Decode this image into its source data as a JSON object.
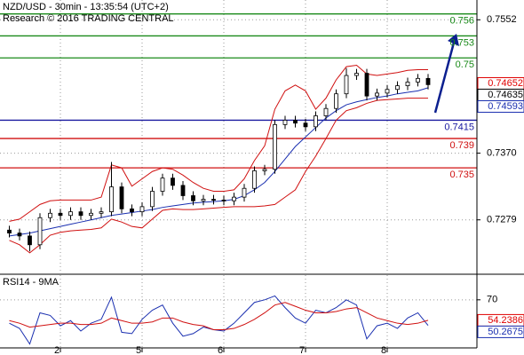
{
  "chart_data": [
    {
      "type": "candlestick",
      "title": "NZD/USD - 30min - 13:35:54 (UTC+2)",
      "subtitle": "Research © 2016 TRADING CENTRAL",
      "categories": [
        null,
        null,
        null,
        null,
        null,
        "2",
        null,
        null,
        null,
        null,
        null,
        null,
        null,
        "5",
        null,
        null,
        null,
        null,
        null,
        null,
        null,
        "6",
        null,
        null,
        null,
        null,
        null,
        null,
        null,
        "7",
        null,
        null,
        null,
        null,
        null,
        null,
        null,
        "8",
        null,
        null,
        null,
        null
      ],
      "open": [
        0.7265,
        0.7261,
        0.7257,
        0.7245,
        0.7282,
        0.7288,
        0.7285,
        0.729,
        0.7285,
        0.7288,
        0.729,
        0.7324,
        0.7294,
        0.729,
        0.7297,
        0.7318,
        0.7336,
        0.7326,
        0.7312,
        0.7305,
        0.7307,
        0.7306,
        0.7305,
        0.731,
        0.7322,
        0.7346,
        0.7348,
        0.7409,
        0.7415,
        0.7411,
        0.7406,
        0.7421,
        0.7431,
        0.7451,
        0.7476,
        0.7479,
        0.7448,
        0.7452,
        0.7457,
        0.7462,
        0.7467,
        0.7472
      ],
      "high": [
        0.7271,
        0.7267,
        0.7263,
        0.7288,
        0.7294,
        0.7294,
        0.7296,
        0.7296,
        0.7294,
        0.7296,
        0.7358,
        0.733,
        0.73,
        0.7303,
        0.7324,
        0.7342,
        0.7342,
        0.7332,
        0.7318,
        0.7313,
        0.7313,
        0.7312,
        0.7316,
        0.7328,
        0.7352,
        0.7354,
        0.7415,
        0.7421,
        0.7421,
        0.7417,
        0.7427,
        0.7437,
        0.7457,
        0.7486,
        0.7485,
        0.7485,
        0.7458,
        0.7463,
        0.7468,
        0.7473,
        0.7478,
        0.7478
      ],
      "low": [
        0.7255,
        0.7251,
        0.7236,
        0.7239,
        0.7276,
        0.7279,
        0.7279,
        0.7279,
        0.7279,
        0.7282,
        0.7284,
        0.7288,
        0.7284,
        0.7284,
        0.7291,
        0.7312,
        0.732,
        0.7306,
        0.7299,
        0.7299,
        0.73,
        0.7299,
        0.7299,
        0.7304,
        0.7316,
        0.734,
        0.7342,
        0.7403,
        0.7405,
        0.74,
        0.74,
        0.7415,
        0.7425,
        0.7445,
        0.747,
        0.7442,
        0.7442,
        0.7446,
        0.7451,
        0.7456,
        0.7461,
        0.7457
      ],
      "close": [
        0.7261,
        0.7257,
        0.7245,
        0.7282,
        0.7288,
        0.7285,
        0.729,
        0.7285,
        0.7288,
        0.729,
        0.7324,
        0.7294,
        0.729,
        0.7297,
        0.7318,
        0.7336,
        0.7326,
        0.7312,
        0.7305,
        0.7307,
        0.7306,
        0.7305,
        0.731,
        0.7322,
        0.7346,
        0.7348,
        0.7409,
        0.7415,
        0.7411,
        0.7406,
        0.7421,
        0.7431,
        0.7451,
        0.7476,
        0.7479,
        0.7448,
        0.7452,
        0.7457,
        0.7462,
        0.7467,
        0.7472,
        0.74635
      ],
      "series": [
        {
          "color": "#1a2fb0",
          "values": [
            0.7257,
            0.7259,
            0.7261,
            0.7264,
            0.7267,
            0.727,
            0.7273,
            0.7276,
            0.7279,
            0.7282,
            0.7285,
            0.7287,
            0.7289,
            0.7291,
            0.7293,
            0.7296,
            0.7298,
            0.73,
            0.7302,
            0.7303,
            0.7304,
            0.7305,
            0.7307,
            0.7312,
            0.732,
            0.733,
            0.7345,
            0.7362,
            0.7379,
            0.7392,
            0.7405,
            0.7418,
            0.7428,
            0.7436,
            0.744,
            0.7443,
            0.7446,
            0.7448,
            0.7451,
            0.7453,
            0.7455,
            0.74593
          ]
        },
        {
          "color": "#d01010",
          "values": [
            0.7277,
            0.728,
            0.729,
            0.73,
            0.7305,
            0.7306,
            0.7306,
            0.7306,
            0.7306,
            0.731,
            0.7354,
            0.735,
            0.7325,
            0.7335,
            0.7345,
            0.735,
            0.7348,
            0.734,
            0.733,
            0.7322,
            0.7318,
            0.7318,
            0.732,
            0.7335,
            0.736,
            0.738,
            0.743,
            0.7455,
            0.7463,
            0.7455,
            0.743,
            0.7445,
            0.747,
            0.7488,
            0.749,
            0.7478,
            0.7476,
            0.7478,
            0.748,
            0.7483,
            0.7484,
            0.7484
          ]
        },
        {
          "color": "#d01010",
          "values": [
            0.7251,
            0.7245,
            0.7234,
            0.7245,
            0.7258,
            0.7262,
            0.7264,
            0.7265,
            0.7266,
            0.7268,
            0.728,
            0.7276,
            0.727,
            0.7268,
            0.728,
            0.7292,
            0.7294,
            0.7293,
            0.7293,
            0.7294,
            0.7295,
            0.7296,
            0.7297,
            0.7297,
            0.7297,
            0.7298,
            0.73,
            0.731,
            0.732,
            0.7345,
            0.7366,
            0.739,
            0.7415,
            0.7428,
            0.7432,
            0.7438,
            0.7442,
            0.7443,
            0.7444,
            0.7445,
            0.7445,
            0.7445
          ]
        }
      ],
      "levels": [
        {
          "value": 0.756,
          "color": "#1a8a1a"
        },
        {
          "value": 0.753,
          "color": "#1a8a1a"
        },
        {
          "value": 0.75,
          "color": "#1a8a1a"
        },
        {
          "value": 0.7415,
          "color": "#1a1aa0"
        },
        {
          "value": 0.739,
          "color": "#d01010"
        },
        {
          "value": 0.735,
          "color": "#d01010"
        }
      ],
      "value_tags": [
        {
          "value": 0.74652,
          "color": "#e00000"
        },
        {
          "value": 0.74635,
          "color": "#000000"
        },
        {
          "value": 0.74593,
          "color": "#1a2fb0"
        }
      ],
      "ylim": [
        0.7206,
        0.7579
      ],
      "yticks": [
        0.7552,
        {
          "value": 0.737,
          "label": "0.7370"
        },
        0.7279
      ],
      "grid": true
    },
    {
      "type": "line",
      "title": "RSI14 - 9MA",
      "series": [
        {
          "color": "#1a2fb0",
          "values": [
            52,
            48,
            36,
            60,
            58,
            50,
            54,
            46,
            52,
            55,
            72,
            45,
            44,
            55,
            62,
            66,
            52,
            42,
            44,
            49,
            47,
            46,
            52,
            60,
            68,
            70,
            73,
            64,
            56,
            52,
            62,
            60,
            64,
            70,
            66,
            40,
            50,
            52,
            48,
            56,
            60,
            50.2675
          ]
        },
        {
          "color": "#d01010",
          "values": [
            54,
            52,
            49,
            50,
            51,
            52,
            52,
            51,
            51,
            52,
            56,
            54,
            52,
            52,
            53,
            56,
            56,
            53,
            51,
            50,
            47,
            47,
            48,
            51,
            55,
            60,
            66,
            68,
            65,
            62,
            60,
            60,
            61,
            63,
            64,
            60,
            56,
            54,
            52,
            51,
            52,
            54.2386
          ]
        }
      ],
      "value_tags": [
        {
          "value": 54.2386,
          "color": "#e00000"
        },
        {
          "value": 50.2675,
          "color": "#1a2fb0"
        }
      ],
      "ylim": [
        33,
        89
      ],
      "yticks": [
        70
      ],
      "grid": true
    }
  ]
}
